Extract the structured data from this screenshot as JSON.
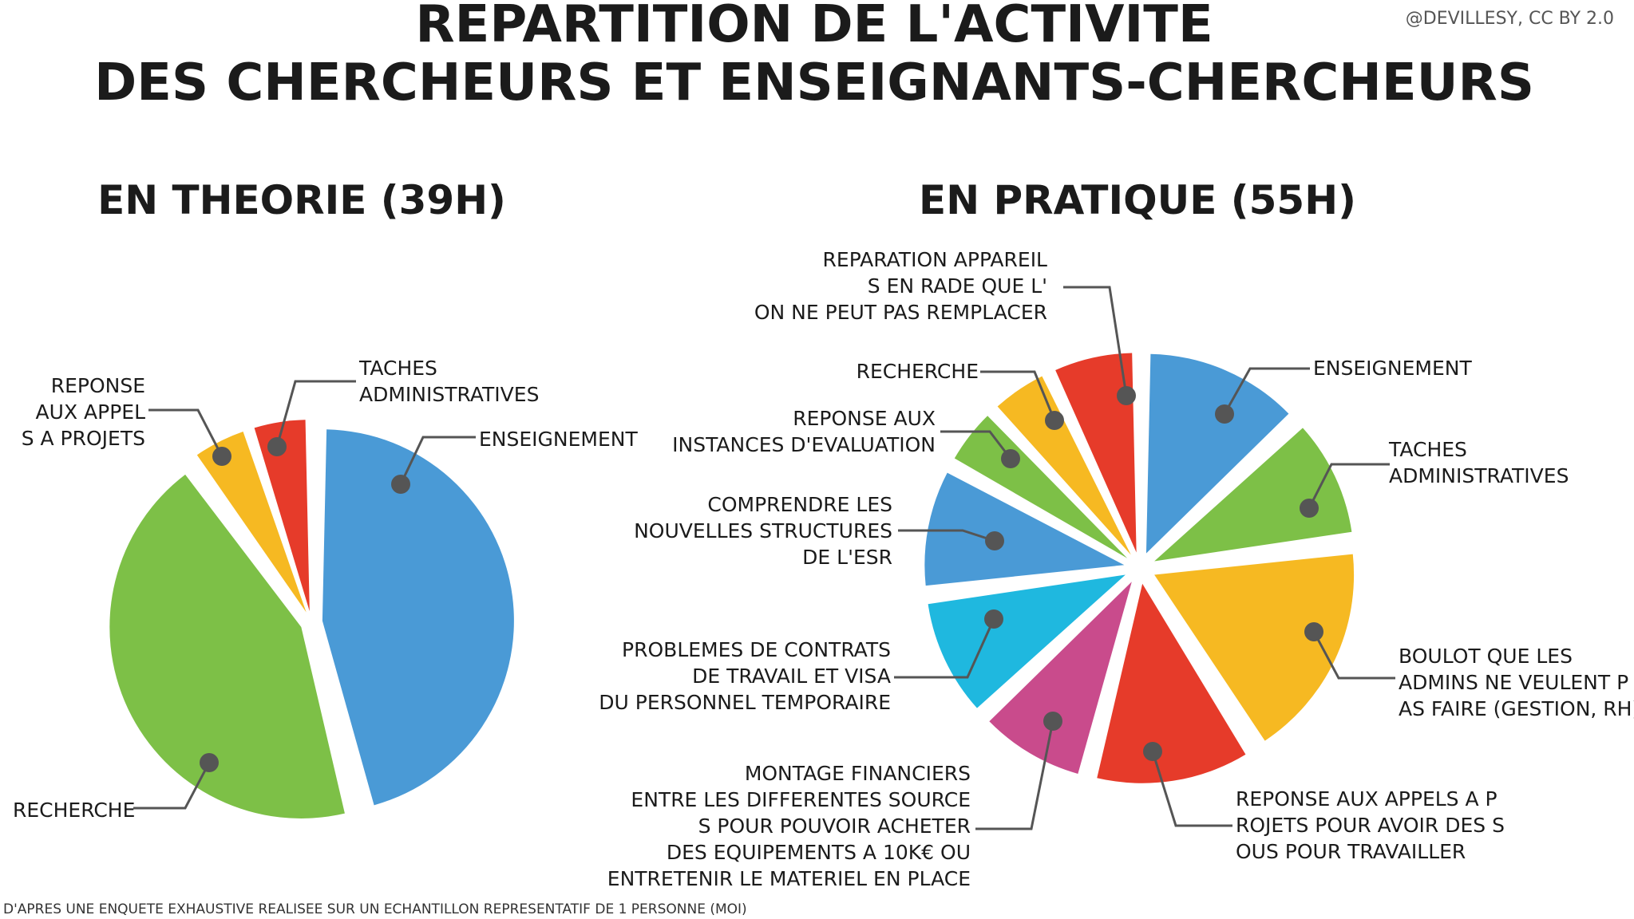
{
  "header": {
    "title_line1": "REPARTITION DE L'ACTIVITE",
    "title_line2": "DES CHERCHEURS ET ENSEIGNANTS-CHERCHEURS",
    "credit": "@DEVILLESY, CC BY 2.0"
  },
  "footnote": "D'APRES UNE ENQUETE EXHAUSTIVE REALISEE SUR UN ECHANTILLON REPRESENTATIF DE 1 PERSONNE (MOI)",
  "chart_data": [
    {
      "type": "pie",
      "title": "EN THEORIE (39H)",
      "slices": [
        {
          "label": "ENSEIGNEMENT",
          "value": 46,
          "color": "#4A9AD6"
        },
        {
          "label": "RECHERCHE",
          "value": 44,
          "color": "#7DC047"
        },
        {
          "label": "REPONSE AUX APPELS A PROJETS",
          "value": 5,
          "color": "#F6B922"
        },
        {
          "label": "TACHES ADMINISTRATIVES",
          "value": 5,
          "color": "#E63B2A"
        }
      ]
    },
    {
      "type": "pie",
      "title": "EN PRATIQUE (55H)",
      "slices": [
        {
          "label": "ENSEIGNEMENT",
          "value": 13,
          "color": "#4A9AD6"
        },
        {
          "label": "TACHES ADMINISTRATIVES",
          "value": 10,
          "color": "#7DC047"
        },
        {
          "label": "BOULOT QUE LES ADMINS NE VEULENT PAS FAIRE (GESTION, RH)",
          "value": 18,
          "color": "#F6B922"
        },
        {
          "label": "REPONSE AUX APPELS A PROJETS POUR AVOIR DES SOUS POUR TRAVAILLER",
          "value": 13,
          "color": "#E63B2A"
        },
        {
          "label": "MONTAGE FINANCIERS ENTRE LES DIFFERENTES SOURCES POUR POUVOIR ACHETER DES EQUIPEMENTS A 10K€ OU ENTRETENIR LE MATERIEL EN PLACE",
          "value": 9,
          "color": "#C94B8C"
        },
        {
          "label": "PROBLEMES DE CONTRATS DE TRAVAIL ET VISA DU PERSONNEL TEMPORAIRE",
          "value": 10,
          "color": "#1FB8DF"
        },
        {
          "label": "COMPRENDRE LES NOUVELLES STRUCTURES DE L'ESR",
          "value": 10,
          "color": "#4A9AD6"
        },
        {
          "label": "REPONSE AUX INSTANCES D'EVALUATION",
          "value": 5,
          "color": "#7DC047"
        },
        {
          "label": "RECHERCHE",
          "value": 5,
          "color": "#F6B922"
        },
        {
          "label": "REPARATION APPAREILS EN RADE QUE L'ON NE PEUT PAS REMPLACER",
          "value": 7,
          "color": "#E63B2A"
        }
      ]
    }
  ]
}
